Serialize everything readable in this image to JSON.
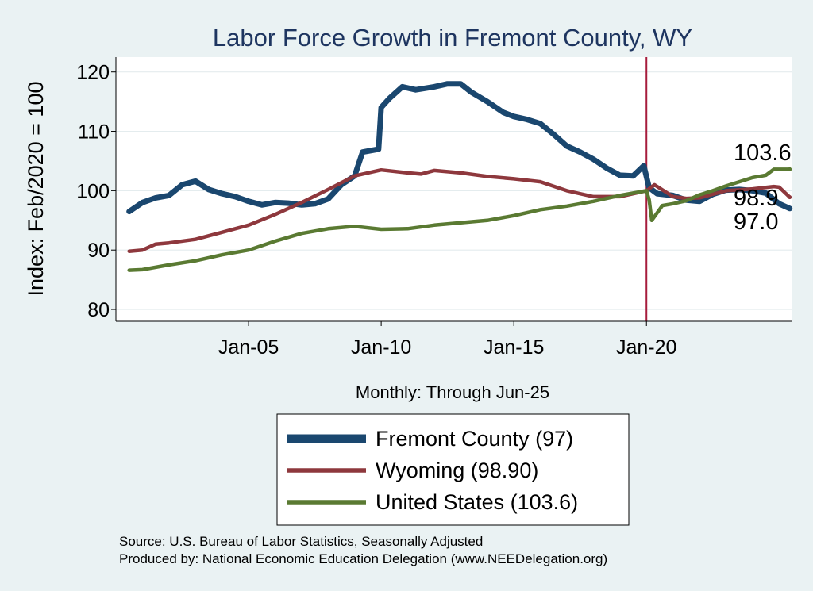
{
  "chart_data": {
    "type": "line",
    "title": "Labor Force Growth in Fremont  County, WY",
    "xlabel": "Monthly: Through Jun-25",
    "ylabel": "Index: Feb/2020 = 100",
    "xlim": [
      2000.0,
      2025.5
    ],
    "ylim": [
      78,
      122.5
    ],
    "yticks": [
      80,
      90,
      100,
      110,
      120
    ],
    "xticks": [
      {
        "value": 2005.0,
        "label": "Jan-05"
      },
      {
        "value": 2010.0,
        "label": "Jan-10"
      },
      {
        "value": 2015.0,
        "label": "Jan-15"
      },
      {
        "value": 2020.0,
        "label": "Jan-20"
      }
    ],
    "reference_line_x": 2020.0,
    "series": [
      {
        "name": "Fremont  County",
        "legend": "Fremont  County (97)",
        "end_label": "97.0",
        "color": "#1a476f",
        "points": [
          [
            2000.5,
            96.5
          ],
          [
            2001.0,
            98.0
          ],
          [
            2001.5,
            98.8
          ],
          [
            2002.0,
            99.2
          ],
          [
            2002.5,
            101.0
          ],
          [
            2003.0,
            101.6
          ],
          [
            2003.5,
            100.2
          ],
          [
            2004.0,
            99.5
          ],
          [
            2004.5,
            99.0
          ],
          [
            2005.0,
            98.2
          ],
          [
            2005.5,
            97.6
          ],
          [
            2006.0,
            98.0
          ],
          [
            2006.5,
            97.9
          ],
          [
            2007.0,
            97.6
          ],
          [
            2007.5,
            97.8
          ],
          [
            2008.0,
            98.6
          ],
          [
            2008.5,
            101.0
          ],
          [
            2009.0,
            102.5
          ],
          [
            2009.3,
            106.5
          ],
          [
            2009.9,
            107.0
          ],
          [
            2010.0,
            114.0
          ],
          [
            2010.3,
            115.5
          ],
          [
            2010.8,
            117.5
          ],
          [
            2011.3,
            117.0
          ],
          [
            2012.0,
            117.5
          ],
          [
            2012.5,
            118.0
          ],
          [
            2013.0,
            118.0
          ],
          [
            2013.4,
            116.6
          ],
          [
            2014.0,
            115.0
          ],
          [
            2014.6,
            113.2
          ],
          [
            2015.0,
            112.5
          ],
          [
            2015.5,
            112.0
          ],
          [
            2016.0,
            111.3
          ],
          [
            2016.5,
            109.5
          ],
          [
            2017.0,
            107.5
          ],
          [
            2017.5,
            106.5
          ],
          [
            2018.0,
            105.3
          ],
          [
            2018.5,
            103.8
          ],
          [
            2019.0,
            102.6
          ],
          [
            2019.5,
            102.5
          ],
          [
            2019.9,
            104.2
          ],
          [
            2020.1,
            100.5
          ],
          [
            2020.4,
            99.5
          ],
          [
            2021.0,
            99.2
          ],
          [
            2021.5,
            98.4
          ],
          [
            2022.0,
            98.2
          ],
          [
            2022.5,
            99.4
          ],
          [
            2023.0,
            100.1
          ],
          [
            2023.5,
            100.2
          ],
          [
            2024.0,
            100.0
          ],
          [
            2024.5,
            99.6
          ],
          [
            2025.0,
            97.8
          ],
          [
            2025.4,
            97.0
          ]
        ]
      },
      {
        "name": "Wyoming",
        "legend": "Wyoming (98.90)",
        "end_label": "98.9",
        "color": "#8e383d",
        "points": [
          [
            2000.5,
            89.8
          ],
          [
            2001.0,
            90.0
          ],
          [
            2001.5,
            91.0
          ],
          [
            2002.0,
            91.2
          ],
          [
            2003.0,
            91.8
          ],
          [
            2004.0,
            93.0
          ],
          [
            2005.0,
            94.2
          ],
          [
            2006.0,
            96.0
          ],
          [
            2007.0,
            98.0
          ],
          [
            2008.0,
            100.2
          ],
          [
            2009.0,
            102.5
          ],
          [
            2010.0,
            103.5
          ],
          [
            2011.0,
            103.0
          ],
          [
            2011.5,
            102.8
          ],
          [
            2012.0,
            103.4
          ],
          [
            2013.0,
            103.0
          ],
          [
            2014.0,
            102.4
          ],
          [
            2015.0,
            102.0
          ],
          [
            2016.0,
            101.5
          ],
          [
            2017.0,
            100.0
          ],
          [
            2018.0,
            99.0
          ],
          [
            2019.0,
            99.0
          ],
          [
            2020.0,
            100.0
          ],
          [
            2020.3,
            101.0
          ],
          [
            2021.0,
            99.0
          ],
          [
            2021.5,
            98.7
          ],
          [
            2022.0,
            98.8
          ],
          [
            2022.5,
            99.4
          ],
          [
            2023.0,
            100.0
          ],
          [
            2024.0,
            100.3
          ],
          [
            2024.8,
            100.7
          ],
          [
            2025.0,
            100.6
          ],
          [
            2025.4,
            98.9
          ]
        ]
      },
      {
        "name": "United States",
        "legend": "United States (103.6)",
        "end_label": "103.6",
        "color": "#5a7a32",
        "points": [
          [
            2000.5,
            86.6
          ],
          [
            2001.0,
            86.7
          ],
          [
            2002.0,
            87.5
          ],
          [
            2003.0,
            88.2
          ],
          [
            2004.0,
            89.2
          ],
          [
            2005.0,
            90.0
          ],
          [
            2006.0,
            91.5
          ],
          [
            2007.0,
            92.8
          ],
          [
            2008.0,
            93.6
          ],
          [
            2009.0,
            94.0
          ],
          [
            2010.0,
            93.5
          ],
          [
            2011.0,
            93.6
          ],
          [
            2012.0,
            94.2
          ],
          [
            2013.0,
            94.6
          ],
          [
            2014.0,
            95.0
          ],
          [
            2015.0,
            95.8
          ],
          [
            2016.0,
            96.8
          ],
          [
            2017.0,
            97.4
          ],
          [
            2018.0,
            98.2
          ],
          [
            2019.0,
            99.2
          ],
          [
            2020.0,
            100.0
          ],
          [
            2020.1,
            98.5
          ],
          [
            2020.2,
            95.0
          ],
          [
            2020.6,
            97.5
          ],
          [
            2021.0,
            97.8
          ],
          [
            2021.5,
            98.3
          ],
          [
            2022.0,
            99.3
          ],
          [
            2022.5,
            100.0
          ],
          [
            2023.0,
            100.8
          ],
          [
            2024.0,
            102.2
          ],
          [
            2024.5,
            102.6
          ],
          [
            2024.8,
            103.6
          ],
          [
            2025.4,
            103.6
          ]
        ]
      }
    ]
  },
  "source_note": "Source: U.S. Bureau of Labor Statistics, Seasonally Adjusted",
  "producer_note": "Produced by: National Economic Education Delegation (www.NEEDelegation.org)"
}
